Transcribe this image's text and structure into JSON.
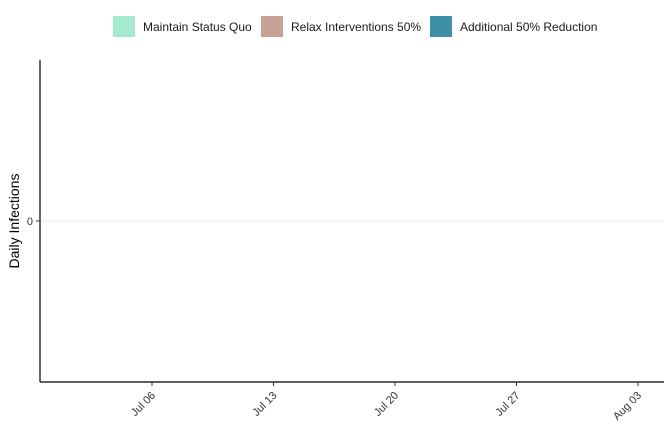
{
  "chart_data": {
    "type": "area",
    "title": "",
    "xlabel": "",
    "ylabel": "Daily Infections",
    "x_ticks": [
      "Jul 06",
      "Jul 13",
      "Jul 20",
      "Jul 27",
      "Aug 03"
    ],
    "y_ticks": [
      0
    ],
    "ylim": [
      -1,
      1
    ],
    "grid": true,
    "legend_position": "top",
    "series": [
      {
        "name": "Maintain Status Quo",
        "color": "#a3ebcc",
        "values": []
      },
      {
        "name": "Relax Interventions 50%",
        "color": "#c6a197",
        "values": []
      },
      {
        "name": "Additional 50% Reduction",
        "color": "#3e8fa8",
        "values": []
      }
    ]
  }
}
